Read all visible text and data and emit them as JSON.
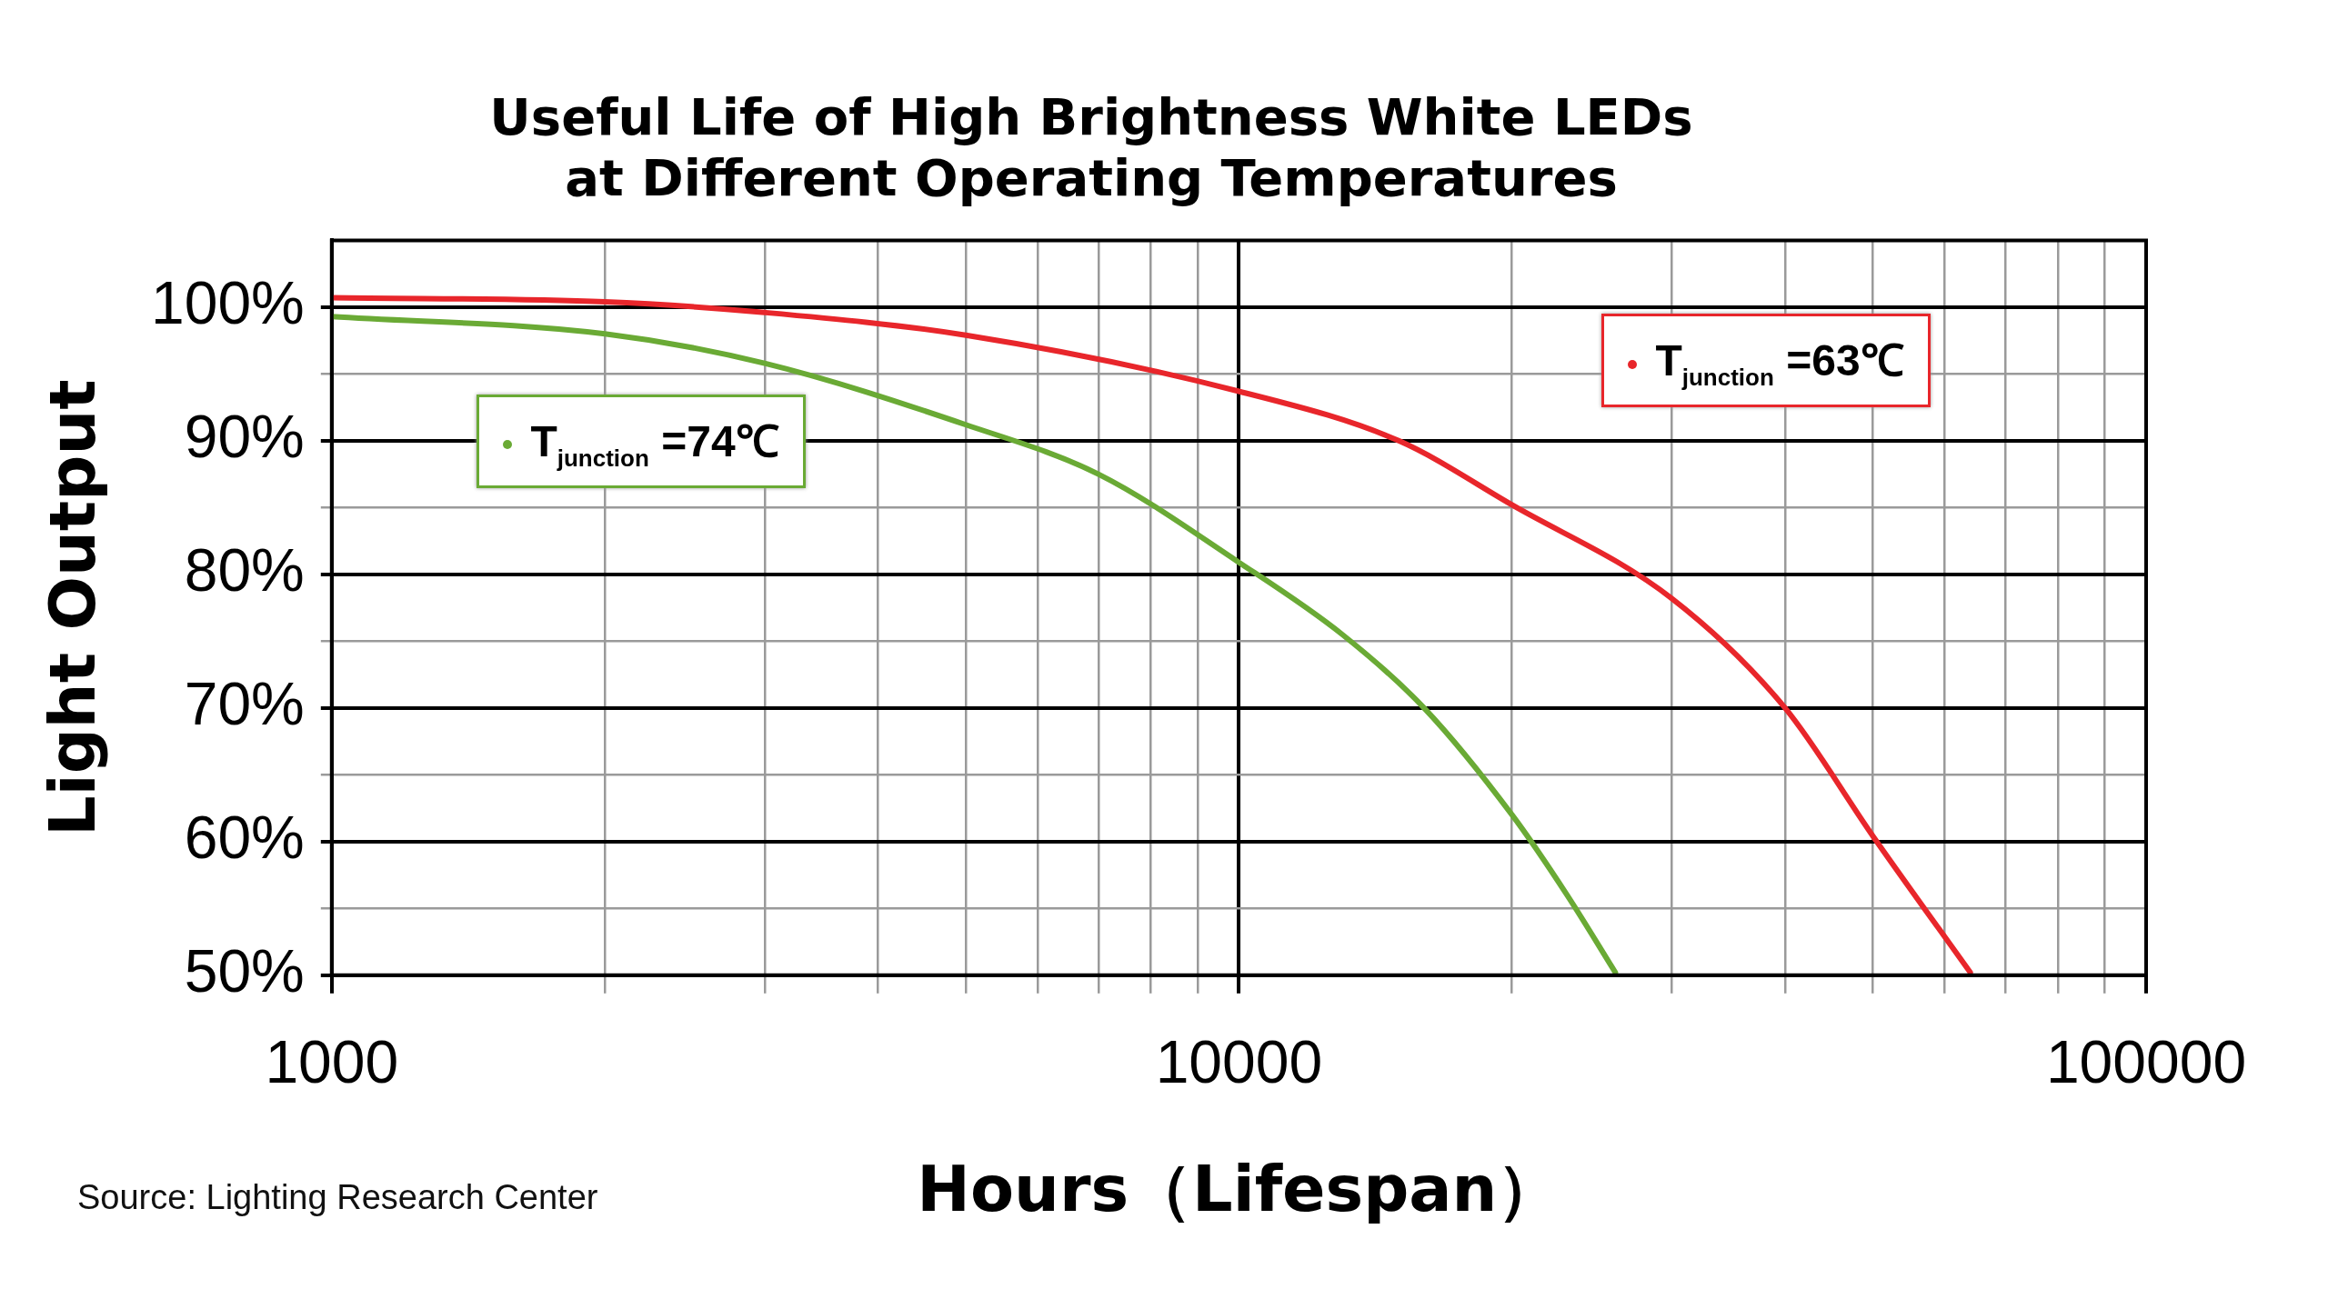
{
  "chart_data": {
    "type": "line",
    "title": [
      "Useful Life of High Brightness White LEDs",
      "at Different Operating Temperatures"
    ],
    "xlabel": "Hours（Lifespan）",
    "ylabel": "Light Output",
    "log": "x",
    "grid": true,
    "marker": "none",
    "legend": "top right",
    "xlim": [
      1000,
      100000
    ],
    "xticks": [
      1000,
      {
        "value": 2000,
        "label": null
      },
      {
        "value": 3000,
        "label": null
      },
      {
        "value": 4000,
        "label": null
      },
      {
        "value": 5000,
        "label": null
      },
      {
        "value": 6000,
        "label": null
      },
      {
        "value": 7000,
        "label": null
      },
      {
        "value": 8000,
        "label": null
      },
      {
        "value": 9000,
        "label": null
      },
      10000,
      {
        "value": 20000,
        "label": null
      },
      {
        "value": 30000,
        "label": null
      },
      {
        "value": 40000,
        "label": null
      },
      {
        "value": 50000,
        "label": null
      },
      {
        "value": 60000,
        "label": null
      },
      {
        "value": 70000,
        "label": null
      },
      {
        "value": 80000,
        "label": null
      },
      {
        "value": 90000,
        "label": null
      },
      100000
    ],
    "ylim": [
      50,
      105
    ],
    "yticks": [
      {
        "value": 50,
        "label": "50%"
      },
      {
        "value": 55,
        "label": null
      },
      {
        "value": 60,
        "label": "60%"
      },
      {
        "value": 65,
        "label": null
      },
      {
        "value": 70,
        "label": "70%"
      },
      {
        "value": 75,
        "label": null
      },
      {
        "value": 80,
        "label": "80%"
      },
      {
        "value": 85,
        "label": null
      },
      {
        "value": 90,
        "label": "90%"
      },
      {
        "value": 95,
        "label": null
      },
      {
        "value": 100,
        "label": "100%"
      }
    ],
    "series": [
      {
        "name": "T$_{junction}$ =63℃",
        "color": "#e8262b",
        "x": [
          1000,
          2000,
          3000,
          5000,
          10000,
          15000,
          20000,
          30000,
          40000,
          50000,
          64000
        ],
        "values": [
          100.7,
          100.4,
          99.6,
          97.9,
          93.7,
          90,
          85.2,
          78.2,
          70,
          60.4,
          50.2
        ]
      },
      {
        "name": "T$_{junction}$ =74℃",
        "color": "#6aaa35",
        "x": [
          1000,
          2000,
          3000,
          5000,
          7000,
          10000,
          13000,
          16000,
          20000,
          23000,
          26000
        ],
        "values": [
          99.3,
          98,
          95.8,
          91.2,
          87.5,
          80.9,
          75.5,
          70,
          62,
          56,
          50.2
        ]
      }
    ],
    "annotations": [
      "Source: Lighting Research Center"
    ]
  }
}
